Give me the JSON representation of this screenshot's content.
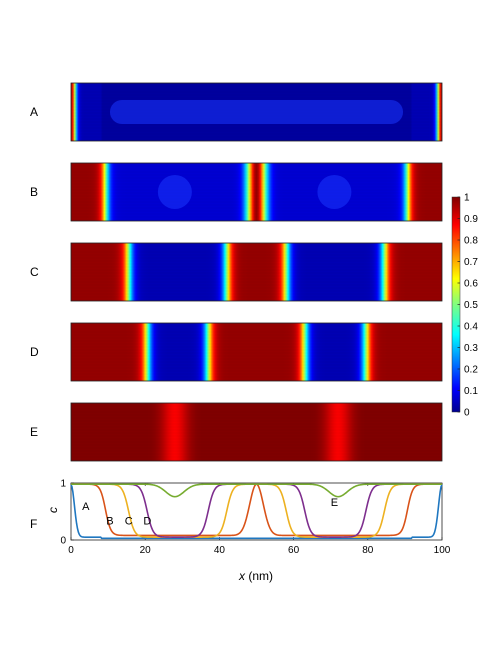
{
  "chart_data": {
    "type": "heatmap",
    "x_domain": [
      0,
      100
    ],
    "panels": [
      {
        "label": "A",
        "description_tag": "state-a",
        "pattern": "edges"
      },
      {
        "label": "B",
        "pattern": "two-domains-center"
      },
      {
        "label": "C",
        "pattern": "stripes-4"
      },
      {
        "label": "D",
        "pattern": "stripes-6"
      },
      {
        "label": "E",
        "pattern": "near-uniform"
      }
    ],
    "colorbar": {
      "min": 0,
      "max": 1,
      "ticks": [
        "0",
        "0.1",
        "0.2",
        "0.3",
        "0.4",
        "0.5",
        "0.6",
        "0.7",
        "0.8",
        "0.9",
        "1"
      ]
    },
    "line_panel": {
      "label": "F",
      "ylabel": "c",
      "xlabel_var": "x",
      "xlabel_unit": " (nm)",
      "xticks": [
        "0",
        "20",
        "40",
        "60",
        "80",
        "100"
      ],
      "yticks": [
        "0",
        "1"
      ],
      "xlim": [
        0,
        100
      ],
      "ylim": [
        0,
        1
      ],
      "series": [
        {
          "name": "A",
          "color": "#1f77c0",
          "profile": "A"
        },
        {
          "name": "B",
          "color": "#d95319",
          "profile": "B"
        },
        {
          "name": "C",
          "color": "#edb120",
          "profile": "C"
        },
        {
          "name": "D",
          "color": "#7e2f8e",
          "profile": "D"
        },
        {
          "name": "E",
          "color": "#77ac30",
          "profile": "E"
        }
      ]
    }
  }
}
